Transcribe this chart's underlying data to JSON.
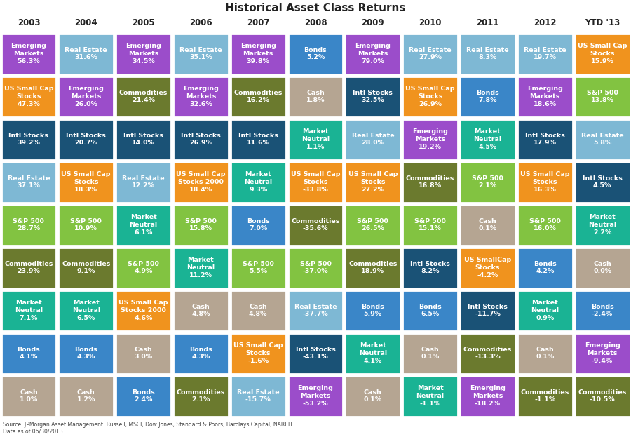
{
  "title": "Historical Asset Class Returns",
  "columns": [
    "2003",
    "2004",
    "2005",
    "2006",
    "2007",
    "2008",
    "2009",
    "2010",
    "2011",
    "2012",
    "YTD '13"
  ],
  "footnote1": "Source: JPMorgan Asset Management. Russell, MSCI, Dow Jones, Standard & Poors, Barclays Capital, NAREIT",
  "footnote2": "Data as of 06/30/2013",
  "bg_color": "#f0f0f0",
  "header_color": "#ffffff",
  "grid": [
    [
      {
        "label": "Emerging\nMarkets",
        "value": "56.3%",
        "color": "#9b4dca"
      },
      {
        "label": "Real Estate",
        "value": "31.6%",
        "color": "#7eb8d4"
      },
      {
        "label": "Emerging\nMarkets",
        "value": "34.5%",
        "color": "#9b4dca"
      },
      {
        "label": "Real Estate",
        "value": "35.1%",
        "color": "#7eb8d4"
      },
      {
        "label": "Emerging\nMarkets",
        "value": "39.8%",
        "color": "#9b4dca"
      },
      {
        "label": "Bonds",
        "value": "5.2%",
        "color": "#3a86c8"
      },
      {
        "label": "Emerging\nMarkets",
        "value": "79.0%",
        "color": "#9b4dca"
      },
      {
        "label": "Real Estate",
        "value": "27.9%",
        "color": "#7eb8d4"
      },
      {
        "label": "Real Estate",
        "value": "8.3%",
        "color": "#7eb8d4"
      },
      {
        "label": "Real Estate",
        "value": "19.7%",
        "color": "#7eb8d4"
      },
      {
        "label": "US Small Cap\nStocks",
        "value": "15.9%",
        "color": "#f0931e"
      }
    ],
    [
      {
        "label": "US Small Cap\nStocks",
        "value": "47.3%",
        "color": "#f0931e"
      },
      {
        "label": "Emerging\nMarkets",
        "value": "26.0%",
        "color": "#9b4dca"
      },
      {
        "label": "Commodities",
        "value": "21.4%",
        "color": "#6b7a2e"
      },
      {
        "label": "Emerging\nMarkets",
        "value": "32.6%",
        "color": "#9b4dca"
      },
      {
        "label": "Commodities",
        "value": "16.2%",
        "color": "#6b7a2e"
      },
      {
        "label": "Cash",
        "value": "1.8%",
        "color": "#b5a592"
      },
      {
        "label": "Intl Stocks",
        "value": "32.5%",
        "color": "#1a5276"
      },
      {
        "label": "US Small Cap\nStocks",
        "value": "26.9%",
        "color": "#f0931e"
      },
      {
        "label": "Bonds",
        "value": "7.8%",
        "color": "#3a86c8"
      },
      {
        "label": "Emerging\nMarkets",
        "value": "18.6%",
        "color": "#9b4dca"
      },
      {
        "label": "S&P 500",
        "value": "13.8%",
        "color": "#82c341"
      }
    ],
    [
      {
        "label": "Intl Stocks",
        "value": "39.2%",
        "color": "#1a5276"
      },
      {
        "label": "Intl Stocks",
        "value": "20.7%",
        "color": "#1a5276"
      },
      {
        "label": "Intl Stocks",
        "value": "14.0%",
        "color": "#1a5276"
      },
      {
        "label": "Intl Stocks",
        "value": "26.9%",
        "color": "#1a5276"
      },
      {
        "label": "Intl Stocks",
        "value": "11.6%",
        "color": "#1a5276"
      },
      {
        "label": "Market\nNeutral",
        "value": "1.1%",
        "color": "#1ab394"
      },
      {
        "label": "Real Estate",
        "value": "28.0%",
        "color": "#7eb8d4"
      },
      {
        "label": "Emerging\nMarkets",
        "value": "19.2%",
        "color": "#9b4dca"
      },
      {
        "label": "Market\nNeutral",
        "value": "4.5%",
        "color": "#1ab394"
      },
      {
        "label": "Intl Stocks",
        "value": "17.9%",
        "color": "#1a5276"
      },
      {
        "label": "Real Estate",
        "value": "5.8%",
        "color": "#7eb8d4"
      }
    ],
    [
      {
        "label": "Real Estate",
        "value": "37.1%",
        "color": "#7eb8d4"
      },
      {
        "label": "US Small Cap\nStocks",
        "value": "18.3%",
        "color": "#f0931e"
      },
      {
        "label": "Real Estate",
        "value": "12.2%",
        "color": "#7eb8d4"
      },
      {
        "label": "US Small Cap\nStocks 2000",
        "value": "18.4%",
        "color": "#f0931e"
      },
      {
        "label": "Market\nNeutral",
        "value": "9.3%",
        "color": "#1ab394"
      },
      {
        "label": "US Small Cap\nStocks",
        "value": "-33.8%",
        "color": "#f0931e"
      },
      {
        "label": "US Small Cap\nStocks",
        "value": "27.2%",
        "color": "#f0931e"
      },
      {
        "label": "Commodities",
        "value": "16.8%",
        "color": "#6b7a2e"
      },
      {
        "label": "S&P 500",
        "value": "2.1%",
        "color": "#82c341"
      },
      {
        "label": "US Small Cap\nStocks",
        "value": "16.3%",
        "color": "#f0931e"
      },
      {
        "label": "Intl Stocks",
        "value": "4.5%",
        "color": "#1a5276"
      }
    ],
    [
      {
        "label": "S&P 500",
        "value": "28.7%",
        "color": "#82c341"
      },
      {
        "label": "S&P 500",
        "value": "10.9%",
        "color": "#82c341"
      },
      {
        "label": "Market\nNeutral",
        "value": "6.1%",
        "color": "#1ab394"
      },
      {
        "label": "S&P 500",
        "value": "15.8%",
        "color": "#82c341"
      },
      {
        "label": "Bonds",
        "value": "7.0%",
        "color": "#3a86c8"
      },
      {
        "label": "Commodities",
        "value": "-35.6%",
        "color": "#6b7a2e"
      },
      {
        "label": "S&P 500",
        "value": "26.5%",
        "color": "#82c341"
      },
      {
        "label": "S&P 500",
        "value": "15.1%",
        "color": "#82c341"
      },
      {
        "label": "Cash",
        "value": "0.1%",
        "color": "#b5a592"
      },
      {
        "label": "S&P 500",
        "value": "16.0%",
        "color": "#82c341"
      },
      {
        "label": "Market\nNeutral",
        "value": "2.2%",
        "color": "#1ab394"
      }
    ],
    [
      {
        "label": "Commodities",
        "value": "23.9%",
        "color": "#6b7a2e"
      },
      {
        "label": "Commodities",
        "value": "9.1%",
        "color": "#6b7a2e"
      },
      {
        "label": "S&P 500",
        "value": "4.9%",
        "color": "#82c341"
      },
      {
        "label": "Market\nNeutral",
        "value": "11.2%",
        "color": "#1ab394"
      },
      {
        "label": "S&P 500",
        "value": "5.5%",
        "color": "#82c341"
      },
      {
        "label": "S&P 500",
        "value": "-37.0%",
        "color": "#82c341"
      },
      {
        "label": "Commodities",
        "value": "18.9%",
        "color": "#6b7a2e"
      },
      {
        "label": "Intl Stocks",
        "value": "8.2%",
        "color": "#1a5276"
      },
      {
        "label": "US SmallCap\nStocks",
        "value": "-4.2%",
        "color": "#f0931e"
      },
      {
        "label": "Bonds",
        "value": "4.2%",
        "color": "#3a86c8"
      },
      {
        "label": "Cash",
        "value": "0.0%",
        "color": "#b5a592"
      }
    ],
    [
      {
        "label": "Market\nNeutral",
        "value": "7.1%",
        "color": "#1ab394"
      },
      {
        "label": "Market\nNeutral",
        "value": "6.5%",
        "color": "#1ab394"
      },
      {
        "label": "US Small Cap\nStocks 2000",
        "value": "4.6%",
        "color": "#f0931e"
      },
      {
        "label": "Cash",
        "value": "4.8%",
        "color": "#b5a592"
      },
      {
        "label": "Cash",
        "value": "4.8%",
        "color": "#b5a592"
      },
      {
        "label": "Real Estate",
        "value": "-37.7%",
        "color": "#7eb8d4"
      },
      {
        "label": "Bonds",
        "value": "5.9%",
        "color": "#3a86c8"
      },
      {
        "label": "Bonds",
        "value": "6.5%",
        "color": "#3a86c8"
      },
      {
        "label": "Intl Stocks",
        "value": "-11.7%",
        "color": "#1a5276"
      },
      {
        "label": "Market\nNeutral",
        "value": "0.9%",
        "color": "#1ab394"
      },
      {
        "label": "Bonds",
        "value": "-2.4%",
        "color": "#3a86c8"
      }
    ],
    [
      {
        "label": "Bonds",
        "value": "4.1%",
        "color": "#3a86c8"
      },
      {
        "label": "Bonds",
        "value": "4.3%",
        "color": "#3a86c8"
      },
      {
        "label": "Cash",
        "value": "3.0%",
        "color": "#b5a592"
      },
      {
        "label": "Bonds",
        "value": "4.3%",
        "color": "#3a86c8"
      },
      {
        "label": "US Small Cap\nStocks",
        "value": "-1.6%",
        "color": "#f0931e"
      },
      {
        "label": "Intl Stocks",
        "value": "-43.1%",
        "color": "#1a5276"
      },
      {
        "label": "Market\nNeutral",
        "value": "4.1%",
        "color": "#1ab394"
      },
      {
        "label": "Cash",
        "value": "0.1%",
        "color": "#b5a592"
      },
      {
        "label": "Commodities",
        "value": "-13.3%",
        "color": "#6b7a2e"
      },
      {
        "label": "Cash",
        "value": "0.1%",
        "color": "#b5a592"
      },
      {
        "label": "Emerging\nMarkets",
        "value": "-9.4%",
        "color": "#9b4dca"
      }
    ],
    [
      {
        "label": "Cash",
        "value": "1.0%",
        "color": "#b5a592"
      },
      {
        "label": "Cash",
        "value": "1.2%",
        "color": "#b5a592"
      },
      {
        "label": "Bonds",
        "value": "2.4%",
        "color": "#3a86c8"
      },
      {
        "label": "Commodities",
        "value": "2.1%",
        "color": "#6b7a2e"
      },
      {
        "label": "Real Estate",
        "value": "-15.7%",
        "color": "#7eb8d4"
      },
      {
        "label": "Emerging\nMarkets",
        "value": "-53.2%",
        "color": "#9b4dca"
      },
      {
        "label": "Cash",
        "value": "0.1%",
        "color": "#b5a592"
      },
      {
        "label": "Market\nNeutral",
        "value": "-1.1%",
        "color": "#1ab394"
      },
      {
        "label": "Emerging\nMarkets",
        "value": "-18.2%",
        "color": "#9b4dca"
      },
      {
        "label": "Commodities",
        "value": "-1.1%",
        "color": "#6b7a2e"
      },
      {
        "label": "Commodities",
        "value": "-10.5%",
        "color": "#6b7a2e"
      }
    ]
  ]
}
